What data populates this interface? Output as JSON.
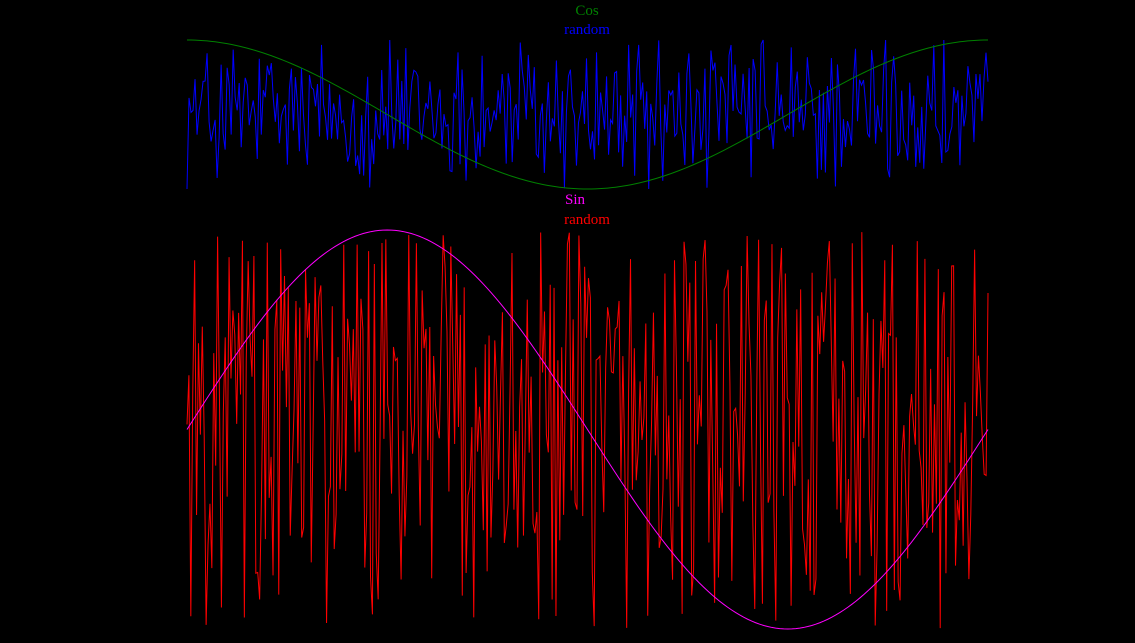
{
  "chart_data": [
    {
      "type": "line",
      "title": "",
      "legend": "top-center",
      "ylim": [
        -1,
        1
      ],
      "x_range": [
        0,
        1
      ],
      "series": [
        {
          "name": "Cos",
          "color": "#008000",
          "function": "cos",
          "cycles": 1,
          "phase_deg": 0,
          "points": 201
        },
        {
          "name": "random",
          "color": "#0000ff",
          "function": "random",
          "points": 400,
          "range": [
            -1,
            1
          ]
        }
      ]
    },
    {
      "type": "line",
      "title": "",
      "legend": "top-center",
      "ylim": [
        -1,
        1
      ],
      "x_range": [
        0,
        1
      ],
      "series": [
        {
          "name": "Sin",
          "color": "#ff00ff",
          "function": "sin",
          "cycles": 1,
          "phase_deg": 0,
          "points": 201
        },
        {
          "name": "random",
          "color": "#ff0000",
          "function": "random",
          "points": 420,
          "range": [
            -1,
            1
          ]
        }
      ]
    }
  ]
}
